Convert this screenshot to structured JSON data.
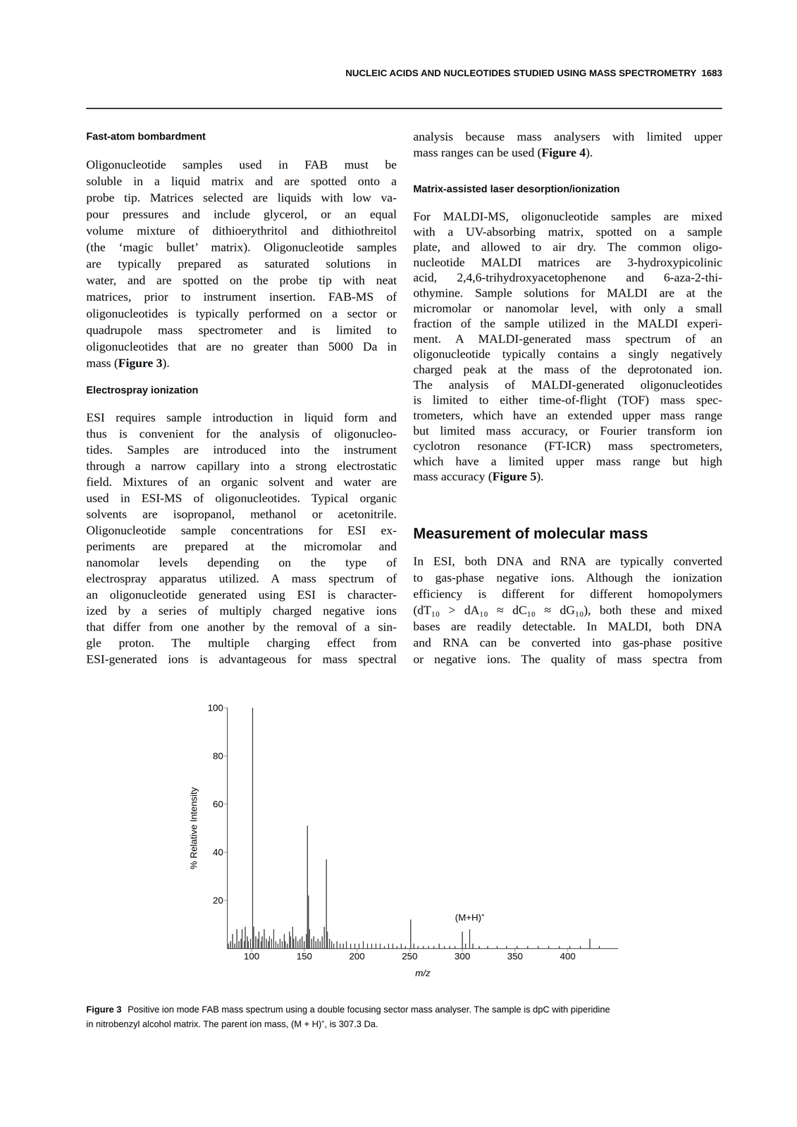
{
  "header": {
    "title": "NUCLEIC ACIDS AND NUCLEOTIDES STUDIED USING MASS SPECTROMETRY",
    "page": "1683"
  },
  "columns": [
    [
      {
        "type": "heading",
        "text": "Fast-atom bombardment"
      },
      {
        "type": "paragraph",
        "lines": [
          "Oligonucleotide samples used in FAB must be",
          "soluble in a liquid matrix and are spotted onto a",
          "probe tip. Matrices selected are liquids with low va-",
          "pour pressures and include glycerol, or an equal",
          "volume mixture of dithioerythritol and dithiothreitol",
          "(the ‘magic bullet’ matrix). Oligonucleotide samples",
          "are typically prepared as saturated solutions in",
          "water, and are spotted on the probe tip with neat",
          "matrices, prior to instrument insertion. FAB-MS of",
          "oligonucleotides is typically performed on a sector or",
          "quadrupole mass spectrometer and is limited to",
          "oligonucleotides that are no greater than 5000 Da in",
          "mass (Figure 3)."
        ]
      },
      {
        "type": "heading",
        "text": "Electrospray ionization"
      },
      {
        "type": "paragraph",
        "lines": [
          "ESI requires sample introduction in liquid form and",
          "thus is convenient for the analysis of oligonucleo-",
          "tides. Samples are introduced into the instrument",
          "through a narrow capillary into a strong electrostatic",
          "field. Mixtures of an organic solvent and water are",
          "used in ESI-MS of oligonucleotides. Typical organic",
          "solvents are isopropanol, methanol or acetonitrile.",
          "Oligonucleotide sample concentrations for ESI ex-",
          "periments are prepared at the micromolar and",
          "nanomolar levels depending on the type of",
          "electrospray apparatus utilized. A mass spectrum of",
          "an oligonucleotide generated using ESI is character-",
          "ized by a series of multiply charged negative ions",
          "that differ from one another by the removal of a sin-",
          "gle proton. The multiple charging effect from",
          "ESI-generated ions is advantageous for mass spectral"
        ]
      }
    ],
    [
      {
        "type": "paragraph",
        "lines": [
          "analysis because mass analysers with limited upper",
          "mass ranges can be used (Figure 4)."
        ]
      },
      {
        "type": "heading",
        "text": "Matrix-assisted laser desorption/ionization"
      },
      {
        "type": "paragraph",
        "lines": [
          "For MALDI-MS, oligonucleotide samples are mixed",
          "with a UV-absorbing matrix, spotted on a sample",
          "plate, and allowed to air dry. The common oligo-",
          "nucleotide MALDI matrices are 3-hydroxypicolinic",
          "acid, 2,4,6-trihydroxyacetophenone and 6-aza-2-thi-",
          "othymine. Sample solutions for MALDI are at the",
          "micromolar or nanomolar level, with only a small",
          "fraction of the sample utilized in the MALDI experi-",
          "ment. A MALDI-generated mass spectrum of an",
          "oligonucleotide typically contains a singly negatively",
          "charged peak at the mass of the deprotonated ion.",
          "The analysis of MALDI-generated oligonucleotides",
          "is limited to either time-of-flight (TOF) mass spec-",
          "trometers, which have an extended upper mass range",
          "but limited mass accuracy, or Fourier transform ion",
          "cyclotron resonance (FT-ICR) mass spectrometers,",
          "which have a limited upper mass range but high",
          "mass accuracy (Figure 5)."
        ]
      },
      {
        "type": "section",
        "text": "Measurement of molecular mass"
      },
      {
        "type": "paragraph",
        "lines": [
          "In ESI, both DNA and RNA are typically converted",
          "to gas-phase negative ions. Although the ionization",
          "efficiency is different for different homopolymers",
          "(dT₁₀ > dA₁₀ ≈ dC₁₀ ≈ dG₁₀), both these and mixed",
          "bases are readily detectable. In MALDI, both DNA",
          "and RNA can be converted into gas-phase positive",
          "or negative ions. The quality of mass spectra from"
        ]
      }
    ]
  ],
  "chart_data": {
    "type": "stick",
    "x_label": "m/z",
    "y_label": "% Relative Intensity",
    "color": "#111111",
    "x": [
      78,
      80,
      82,
      84,
      86,
      88,
      90,
      91,
      93,
      94,
      96,
      97,
      99,
      101,
      102,
      104,
      106,
      107,
      109,
      110,
      112,
      114,
      116,
      117,
      119,
      121,
      123,
      125,
      127,
      129,
      131,
      132,
      134,
      136,
      137,
      139,
      140,
      142,
      144,
      146,
      148,
      150,
      152,
      153,
      154,
      155,
      157,
      159,
      161,
      163,
      165,
      167,
      169,
      171,
      172,
      174,
      176,
      178,
      181,
      184,
      187,
      190,
      194,
      198,
      202,
      206,
      210,
      214,
      218,
      222,
      226,
      230,
      234,
      238,
      242,
      246,
      251,
      254,
      258,
      263,
      268,
      273,
      278,
      283,
      288,
      293,
      300,
      303,
      307,
      310,
      316,
      324,
      333,
      342,
      352,
      362,
      372,
      382,
      392,
      402,
      412,
      421,
      430
    ],
    "values": [
      2,
      3,
      6,
      2,
      8,
      3,
      4,
      8,
      3,
      9,
      5,
      3,
      4,
      100,
      9,
      5,
      4,
      7,
      3,
      5,
      8,
      4,
      3,
      5,
      4,
      8,
      3,
      2,
      4,
      3,
      6,
      3,
      2,
      7,
      5,
      9,
      4,
      5,
      3,
      4,
      5,
      3,
      6,
      51,
      22,
      8,
      4,
      5,
      3,
      4,
      3,
      5,
      9,
      37,
      7,
      4,
      3,
      2,
      3,
      2,
      2,
      3,
      2,
      2,
      2,
      3,
      2,
      2,
      2,
      2,
      1,
      2,
      2,
      1,
      2,
      1,
      12,
      2,
      1,
      1,
      1,
      1,
      2,
      1,
      1,
      1,
      7,
      2,
      8,
      2,
      1,
      1,
      1,
      1,
      1,
      1,
      1,
      1,
      1,
      1,
      1,
      4,
      1
    ],
    "xlim": [
      77,
      448
    ],
    "xticks": [
      100,
      150,
      200,
      250,
      300,
      350,
      400
    ],
    "ylim": [
      0,
      100
    ],
    "yticks": [
      20,
      40,
      60,
      80,
      100
    ],
    "grid": false,
    "annotations": [
      {
        "text": "(M+H)⁺",
        "x": 307
      }
    ]
  },
  "caption": {
    "label": "Figure 3",
    "lines": [
      "Positive ion mode FAB mass spectrum using a double focusing sector mass analyser. The sample is dpC with piperidine",
      "in nitrobenzyl alcohol matrix. The parent ion mass, (M + H)⁺, is 307.3 Da."
    ]
  }
}
